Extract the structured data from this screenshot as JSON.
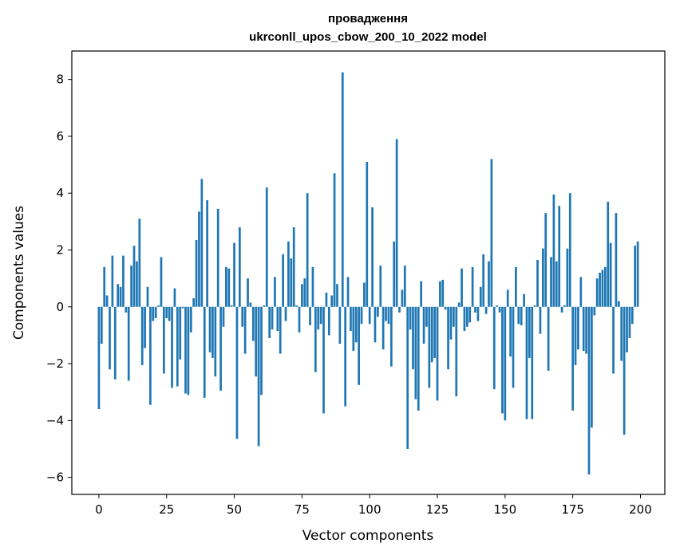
{
  "chart_data": {
    "type": "bar",
    "title": [
      "провадження",
      "ukrconll_upos_cbow_200_10_2022 model"
    ],
    "xlabel": "Vector components",
    "ylabel": "Components values",
    "xlim": [
      -10,
      209
    ],
    "ylim": [
      -6.6,
      9.0
    ],
    "xticks": [
      0,
      25,
      50,
      75,
      100,
      125,
      150,
      175,
      200
    ],
    "yticks": [
      -6,
      -4,
      -2,
      0,
      2,
      4,
      6,
      8
    ],
    "ytick_labels": [
      "−6",
      "−4",
      "−2",
      "0",
      "2",
      "4",
      "6",
      "8"
    ],
    "xtick_labels": [
      "0",
      "25",
      "50",
      "75",
      "100",
      "125",
      "150",
      "175",
      "200"
    ],
    "bar_color": "#1f77b4",
    "grid": false,
    "values": [
      -3.6,
      -1.3,
      1.4,
      0.4,
      -2.2,
      1.8,
      -2.55,
      0.8,
      0.7,
      1.8,
      -0.2,
      -2.6,
      1.45,
      2.15,
      1.6,
      3.1,
      -2.05,
      -1.45,
      0.7,
      -3.45,
      -0.5,
      -0.4,
      0.05,
      1.75,
      -2.35,
      -0.4,
      -0.5,
      -2.85,
      0.65,
      -2.8,
      -1.85,
      -0.05,
      -3.05,
      -3.1,
      -0.9,
      0.3,
      2.35,
      3.35,
      4.5,
      -3.2,
      3.75,
      -1.6,
      -1.8,
      -2.45,
      3.45,
      -2.95,
      -0.7,
      1.4,
      1.35,
      0.05,
      2.25,
      -4.65,
      2.8,
      -0.7,
      -1.65,
      1.0,
      0.15,
      -1.2,
      -2.45,
      -4.9,
      -3.1,
      0.05,
      4.2,
      -1.1,
      -0.8,
      1.05,
      -0.85,
      -1.65,
      1.85,
      -0.5,
      2.3,
      1.7,
      2.8,
      0.05,
      -0.9,
      0.8,
      1.0,
      4.0,
      -0.65,
      1.4,
      -2.3,
      -0.8,
      -0.6,
      -3.75,
      0.5,
      -1.0,
      0.4,
      4.7,
      0.8,
      -1.3,
      8.25,
      -3.5,
      1.05,
      -0.85,
      -1.55,
      -1.25,
      -2.75,
      -0.6,
      0.85,
      5.1,
      -0.6,
      3.5,
      -1.25,
      -0.35,
      1.45,
      -1.5,
      -0.5,
      -0.6,
      -2.1,
      2.3,
      5.9,
      -0.2,
      0.6,
      1.45,
      -5.0,
      -0.8,
      -2.2,
      -3.25,
      -3.65,
      0.9,
      -1.3,
      -0.7,
      -2.85,
      -1.95,
      -1.8,
      -3.3,
      0.9,
      0.95,
      -0.1,
      -2.2,
      -1.15,
      -0.7,
      -3.15,
      0.15,
      1.35,
      -0.85,
      -0.7,
      -0.55,
      1.4,
      -0.2,
      -0.5,
      0.7,
      1.85,
      -0.25,
      1.6,
      5.2,
      -2.9,
      0.05,
      -0.2,
      -3.75,
      -4.0,
      0.6,
      -1.75,
      -2.85,
      1.4,
      -0.6,
      -0.65,
      0.45,
      -3.95,
      -1.8,
      -3.95,
      0.05,
      1.65,
      -0.95,
      2.05,
      3.3,
      -2.25,
      1.75,
      3.95,
      1.6,
      3.55,
      -0.2,
      0.05,
      2.05,
      4.0,
      -3.65,
      -2.05,
      -1.5,
      1.05,
      -1.55,
      -1.65,
      -5.9,
      -4.25,
      -0.3,
      1.0,
      1.2,
      1.3,
      1.4,
      3.7,
      2.25,
      -2.35,
      3.3,
      0.2,
      -1.9,
      -4.5,
      -1.6,
      -1.1,
      -0.6,
      2.15,
      2.3
    ]
  }
}
